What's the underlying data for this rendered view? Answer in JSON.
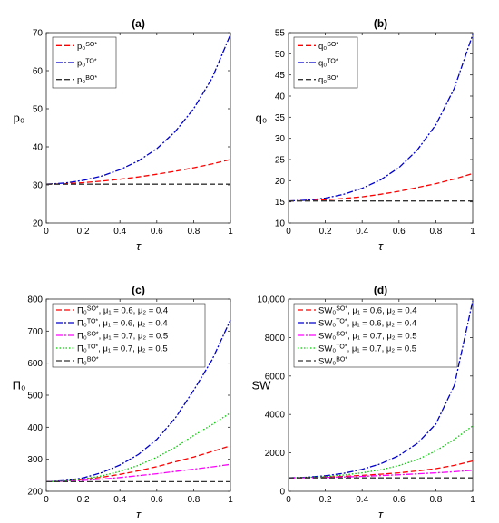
{
  "chart_data": [
    {
      "type": "line",
      "title": "(a)",
      "xlabel": "τ",
      "ylabel": "p₀",
      "xlim": [
        0,
        1
      ],
      "ylim": [
        20,
        70
      ],
      "xticks": [
        "0",
        "0.2",
        "0.4",
        "0.6",
        "0.8",
        "1"
      ],
      "yticks": [
        "20",
        "30",
        "40",
        "50",
        "60",
        "70"
      ],
      "grid": false,
      "legend_position": "top-left",
      "x": [
        0,
        0.1,
        0.2,
        0.3,
        0.4,
        0.5,
        0.6,
        0.7,
        0.8,
        0.9,
        1.0
      ],
      "series": [
        {
          "name": "p₀^{SO*}",
          "color": "#ff0000",
          "dash": "dashed",
          "values": [
            30.2,
            30.3,
            30.6,
            31.0,
            31.5,
            32.1,
            32.8,
            33.6,
            34.5,
            35.5,
            36.7
          ]
        },
        {
          "name": "p₀^{TO*}",
          "color": "#0000cc",
          "dash": "dashdot",
          "values": [
            30.2,
            30.5,
            31.2,
            32.3,
            34.0,
            36.3,
            39.5,
            44.0,
            50.0,
            58.0,
            69.5
          ]
        },
        {
          "name": "p₀^{BO*}",
          "color": "#333333",
          "dash": "dashed",
          "values": [
            30.2,
            30.2,
            30.2,
            30.2,
            30.2,
            30.2,
            30.2,
            30.2,
            30.2,
            30.2,
            30.2
          ]
        }
      ]
    },
    {
      "type": "line",
      "title": "(b)",
      "xlabel": "τ",
      "ylabel": "q₀",
      "xlim": [
        0,
        1
      ],
      "ylim": [
        10,
        55
      ],
      "xticks": [
        "0",
        "0.2",
        "0.4",
        "0.6",
        "0.8",
        "1"
      ],
      "yticks": [
        "10",
        "15",
        "20",
        "25",
        "30",
        "35",
        "40",
        "45",
        "50",
        "55"
      ],
      "grid": false,
      "legend_position": "top-left",
      "x": [
        0,
        0.1,
        0.2,
        0.3,
        0.4,
        0.5,
        0.6,
        0.7,
        0.8,
        0.9,
        1.0
      ],
      "series": [
        {
          "name": "q₀^{SO*}",
          "color": "#ff0000",
          "dash": "dashed",
          "values": [
            15.2,
            15.3,
            15.5,
            15.8,
            16.2,
            16.8,
            17.5,
            18.4,
            19.3,
            20.4,
            21.7
          ]
        },
        {
          "name": "q₀^{TO*}",
          "color": "#0000cc",
          "dash": "dashdot",
          "values": [
            15.2,
            15.4,
            15.9,
            16.8,
            18.2,
            20.2,
            23.1,
            27.3,
            33.2,
            41.8,
            54.5
          ]
        },
        {
          "name": "q₀^{BO*}",
          "color": "#333333",
          "dash": "dashed",
          "values": [
            15.2,
            15.2,
            15.2,
            15.2,
            15.2,
            15.2,
            15.2,
            15.2,
            15.2,
            15.2,
            15.2
          ]
        }
      ]
    },
    {
      "type": "line",
      "title": "(c)",
      "xlabel": "τ",
      "ylabel": "Π₀",
      "xlim": [
        0,
        1
      ],
      "ylim": [
        200,
        800
      ],
      "xticks": [
        "0",
        "0.2",
        "0.4",
        "0.6",
        "0.8",
        "1"
      ],
      "yticks": [
        "200",
        "300",
        "400",
        "500",
        "600",
        "700",
        "800"
      ],
      "grid": false,
      "legend_position": "top-left",
      "x": [
        0,
        0.1,
        0.2,
        0.3,
        0.4,
        0.5,
        0.6,
        0.7,
        0.8,
        0.9,
        1.0
      ],
      "series": [
        {
          "name": "Π₀^{SO*}, μ₁ = 0.6, μ₂ = 0.4",
          "color": "#ff0000",
          "dash": "dashed",
          "values": [
            230,
            232,
            237,
            244,
            253,
            264,
            277,
            292,
            307,
            324,
            342
          ]
        },
        {
          "name": "Π₀^{TO*}, μ₁ = 0.6, μ₂ = 0.4",
          "color": "#0000cc",
          "dash": "dashdot",
          "values": [
            230,
            233,
            242,
            258,
            282,
            315,
            362,
            428,
            515,
            610,
            735
          ]
        },
        {
          "name": "Π₀^{SO*}, μ₁ = 0.7, μ₂ = 0.5",
          "color": "#ff00ff",
          "dash": "dashdot",
          "values": [
            230,
            231,
            234,
            238,
            243,
            249,
            255,
            262,
            269,
            276,
            284
          ]
        },
        {
          "name": "Π₀^{TO*}, μ₁ = 0.7, μ₂ = 0.5",
          "color": "#00cc00",
          "dash": "dotted",
          "values": [
            230,
            232,
            238,
            248,
            262,
            281,
            306,
            337,
            374,
            408,
            445
          ]
        },
        {
          "name": "Π₀^{BO*}",
          "color": "#333333",
          "dash": "dashed",
          "values": [
            230,
            230,
            230,
            230,
            230,
            230,
            230,
            230,
            230,
            230,
            230
          ]
        }
      ]
    },
    {
      "type": "line",
      "title": "(d)",
      "xlabel": "τ",
      "ylabel": "SW",
      "xlim": [
        0,
        1
      ],
      "ylim": [
        0,
        10000
      ],
      "xticks": [
        "0",
        "0.2",
        "0.4",
        "0.6",
        "0.8",
        "1"
      ],
      "yticks": [
        "0",
        "2000",
        "4000",
        "6000",
        "8000",
        "10,000"
      ],
      "grid": false,
      "legend_position": "top-left",
      "x": [
        0,
        0.1,
        0.2,
        0.3,
        0.4,
        0.5,
        0.6,
        0.7,
        0.8,
        0.9,
        1.0
      ],
      "series": [
        {
          "name": "SW₀^{SO*}, μ₁ = 0.6, μ₂ = 0.4",
          "color": "#ff0000",
          "dash": "dashed",
          "values": [
            700,
            710,
            740,
            780,
            830,
            890,
            960,
            1060,
            1180,
            1350,
            1580
          ]
        },
        {
          "name": "SW₀^{TO*}, μ₁ = 0.6, μ₂ = 0.4",
          "color": "#0000cc",
          "dash": "dashdot",
          "values": [
            700,
            730,
            810,
            940,
            1140,
            1430,
            1860,
            2500,
            3500,
            5500,
            9900
          ]
        },
        {
          "name": "SW₀^{SO*}, μ₁ = 0.7, μ₂ = 0.5",
          "color": "#ff00ff",
          "dash": "dashdot",
          "values": [
            700,
            705,
            720,
            745,
            780,
            820,
            865,
            910,
            960,
            1020,
            1100
          ]
        },
        {
          "name": "SW₀^{TO*}, μ₁ = 0.7, μ₂ = 0.5",
          "color": "#00cc00",
          "dash": "dotted",
          "values": [
            700,
            720,
            770,
            850,
            960,
            1120,
            1340,
            1650,
            2100,
            2700,
            3400
          ]
        },
        {
          "name": "SW₀^{BO*}",
          "color": "#333333",
          "dash": "dashed",
          "values": [
            700,
            700,
            700,
            700,
            700,
            700,
            700,
            700,
            700,
            700,
            700
          ]
        }
      ]
    }
  ]
}
